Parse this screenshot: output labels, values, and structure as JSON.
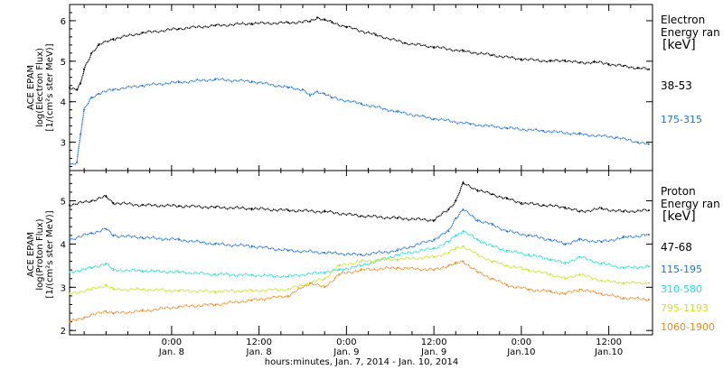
{
  "x_axis": {
    "ticks": [
      {
        "time": "0:00",
        "date": "Jan. 8"
      },
      {
        "time": "12:00",
        "date": "Jan. 8"
      },
      {
        "time": "0:00",
        "date": "Jan. 9"
      },
      {
        "time": "12:00",
        "date": "Jan. 9"
      },
      {
        "time": "0:00",
        "date": "Jan.10"
      },
      {
        "time": "12:00",
        "date": "Jan.10"
      }
    ],
    "label": "hours:minutes, Jan.  7, 2014 - Jan. 10, 2014"
  },
  "chart_data": [
    {
      "type": "scatter",
      "ylabel": [
        "ACE EPAM",
        "log(Electron Flux)",
        "[1/(cm²s ster MeV)]"
      ],
      "ylim": [
        2.3,
        6.4
      ],
      "yticks": [
        3,
        4,
        5,
        6
      ],
      "xlim_hours_from_jan7_0000": [
        10,
        90
      ],
      "legend_title": [
        "Electron",
        "Energy ran",
        "[keV]"
      ],
      "series": [
        {
          "name": "38-53",
          "color": "#000000",
          "x": [
            10,
            11,
            11.5,
            12,
            13,
            14,
            16,
            20,
            25,
            30,
            35,
            40,
            43,
            44,
            45,
            46,
            48,
            52,
            56,
            60,
            64,
            68,
            72,
            76,
            78,
            80,
            82,
            84,
            86,
            88,
            89.5
          ],
          "values": [
            4.35,
            4.3,
            4.45,
            4.8,
            5.2,
            5.4,
            5.55,
            5.7,
            5.8,
            5.88,
            5.93,
            5.95,
            5.98,
            6.08,
            6.02,
            5.96,
            5.85,
            5.65,
            5.45,
            5.35,
            5.25,
            5.15,
            5.05,
            5.0,
            5.02,
            4.96,
            4.98,
            4.93,
            4.88,
            4.83,
            4.8
          ]
        },
        {
          "name": "175-315",
          "color": "#1e73d8",
          "x": [
            10,
            11,
            11.5,
            12,
            13,
            14,
            16,
            20,
            25,
            30,
            35,
            40,
            42,
            43,
            44,
            45,
            46,
            50,
            55,
            60,
            65,
            70,
            75,
            80,
            85,
            88,
            89.5
          ],
          "values": [
            2.45,
            2.5,
            3.2,
            3.8,
            4.1,
            4.2,
            4.3,
            4.4,
            4.48,
            4.55,
            4.5,
            4.35,
            4.3,
            4.15,
            4.25,
            4.2,
            4.1,
            3.95,
            3.75,
            3.58,
            3.45,
            3.35,
            3.28,
            3.2,
            3.12,
            3.0,
            2.95
          ]
        }
      ]
    },
    {
      "type": "scatter",
      "ylabel": [
        "ACE EPAM",
        "log(Proton Flux)",
        "[1/(cm²s ster MeV)]"
      ],
      "ylim": [
        1.9,
        5.7
      ],
      "yticks": [
        2,
        3,
        4,
        5
      ],
      "xlim_hours_from_jan7_0000": [
        10,
        90
      ],
      "legend_title": [
        "Proton",
        "Energy ran",
        "[keV]"
      ],
      "series": [
        {
          "name": "47-68",
          "color": "#000000",
          "x": [
            10,
            13,
            15,
            16,
            20,
            25,
            30,
            35,
            40,
            45,
            50,
            55,
            60,
            62,
            63,
            64,
            66,
            68,
            70,
            72,
            75,
            78,
            80,
            83,
            86,
            89.5
          ],
          "values": [
            4.9,
            5.0,
            5.1,
            4.95,
            4.9,
            4.88,
            4.85,
            4.82,
            4.78,
            4.75,
            4.65,
            4.6,
            4.55,
            4.8,
            5.0,
            5.4,
            5.25,
            5.15,
            5.05,
            4.95,
            4.9,
            4.85,
            4.75,
            4.82,
            4.75,
            4.78
          ]
        },
        {
          "name": "115-195",
          "color": "#1e73d8",
          "x": [
            10,
            13,
            15,
            16,
            20,
            25,
            30,
            35,
            40,
            45,
            50,
            55,
            60,
            62,
            63,
            64,
            66,
            68,
            70,
            73,
            76,
            78,
            80,
            83,
            86,
            89.5
          ],
          "values": [
            4.1,
            4.25,
            4.35,
            4.2,
            4.15,
            4.1,
            4.0,
            3.95,
            3.85,
            3.8,
            3.75,
            3.85,
            4.1,
            4.3,
            4.6,
            4.8,
            4.55,
            4.45,
            4.3,
            4.2,
            4.1,
            4.0,
            4.1,
            4.05,
            4.15,
            4.22
          ]
        },
        {
          "name": "310-580",
          "color": "#1fe3d0",
          "x": [
            10,
            13,
            15,
            16,
            20,
            25,
            30,
            35,
            40,
            45,
            47,
            50,
            55,
            60,
            62,
            63,
            64,
            66,
            68,
            70,
            73,
            76,
            78,
            80,
            83,
            86,
            89.5
          ],
          "values": [
            3.35,
            3.45,
            3.55,
            3.4,
            3.38,
            3.35,
            3.3,
            3.28,
            3.25,
            3.35,
            3.4,
            3.5,
            3.75,
            3.9,
            4.05,
            4.2,
            4.3,
            4.1,
            3.95,
            3.85,
            3.75,
            3.65,
            3.55,
            3.7,
            3.55,
            3.45,
            3.48
          ]
        },
        {
          "name": "795-1193",
          "color": "#c8e61e",
          "x": [
            10,
            13,
            15,
            16,
            20,
            25,
            30,
            35,
            40,
            45,
            47,
            50,
            55,
            60,
            62,
            63,
            64,
            66,
            68,
            70,
            73,
            76,
            78,
            80,
            83,
            86,
            89.5
          ],
          "values": [
            2.85,
            2.95,
            3.05,
            2.95,
            2.95,
            2.92,
            2.9,
            2.92,
            2.95,
            3.2,
            3.5,
            3.6,
            3.65,
            3.7,
            3.8,
            3.9,
            3.95,
            3.75,
            3.6,
            3.5,
            3.4,
            3.3,
            3.2,
            3.3,
            3.15,
            3.1,
            3.1
          ]
        },
        {
          "name": "1060-1900",
          "color": "#f08a1c",
          "x": [
            10,
            12,
            15,
            16,
            20,
            25,
            30,
            35,
            40,
            43,
            45,
            47,
            50,
            55,
            60,
            62,
            63,
            64,
            66,
            68,
            70,
            73,
            76,
            78,
            80,
            83,
            86,
            89.5
          ],
          "values": [
            2.2,
            2.3,
            2.45,
            2.4,
            2.45,
            2.55,
            2.6,
            2.7,
            2.8,
            3.1,
            3.0,
            3.3,
            3.4,
            3.45,
            3.4,
            3.5,
            3.55,
            3.6,
            3.35,
            3.2,
            3.05,
            2.95,
            2.9,
            2.85,
            2.95,
            2.85,
            2.75,
            2.72
          ]
        }
      ]
    }
  ]
}
